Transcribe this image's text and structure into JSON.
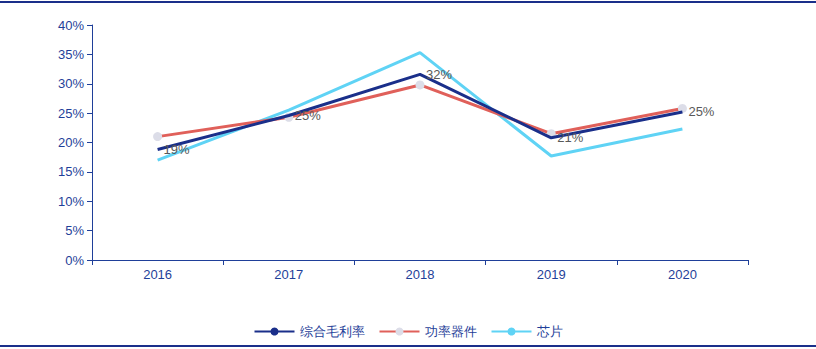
{
  "chart_data": {
    "type": "line",
    "categories": [
      "2016",
      "2017",
      "2018",
      "2019",
      "2020"
    ],
    "series": [
      {
        "name": "综合毛利率",
        "color": "#1a2f8a",
        "marker": "none",
        "line_style": "solid",
        "data_labels": true,
        "values": [
          18.8,
          24.6,
          31.6,
          20.8,
          25.2
        ],
        "value_labels": [
          "19%",
          "25%",
          "32%",
          "21%",
          "25%"
        ]
      },
      {
        "name": "功率器件",
        "color": "#e0605a",
        "marker": "circle",
        "line_style": "solid",
        "values": [
          21.0,
          24.3,
          29.8,
          21.5,
          25.8
        ]
      },
      {
        "name": "芯片",
        "color": "#5fd3f5",
        "marker": "none",
        "line_style": "solid",
        "values": [
          17.0,
          25.5,
          35.3,
          17.7,
          22.3
        ]
      }
    ],
    "ylim": [
      0,
      40
    ],
    "yticks": [
      {
        "value": 0,
        "label": "0%"
      },
      {
        "value": 5,
        "label": "5%"
      },
      {
        "value": 10,
        "label": "10%"
      },
      {
        "value": 15,
        "label": "15%"
      },
      {
        "value": 20,
        "label": "20%"
      },
      {
        "value": 25,
        "label": "25%"
      },
      {
        "value": 30,
        "label": "30%"
      },
      {
        "value": 35,
        "label": "35%"
      },
      {
        "value": 40,
        "label": "40%"
      }
    ],
    "grid": false,
    "legend": "bottom"
  }
}
